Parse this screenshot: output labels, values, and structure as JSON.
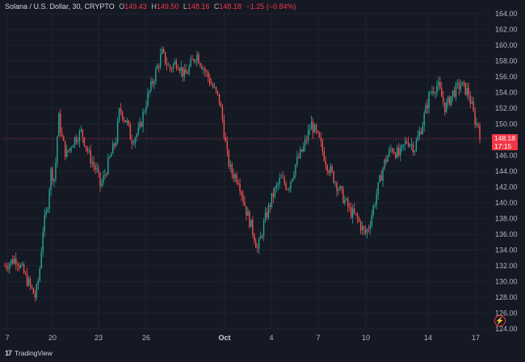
{
  "header": {
    "symbol": "Solana / U.S. Dollar, 30, CRYPTO",
    "open_label": "O",
    "open": "149.43",
    "high_label": "H",
    "high": "149.50",
    "low_label": "L",
    "low": "148.16",
    "close_label": "C",
    "close": "148.18",
    "change": "−1.25 (−0.84%)"
  },
  "price_tag": {
    "price": "148.18",
    "countdown": "17:15",
    "color": "#f23645"
  },
  "brand": {
    "name": "TradingView"
  },
  "colors": {
    "up": "#26a69a",
    "down": "#ef5350",
    "background": "#151924",
    "grid": "#1f2330"
  },
  "icons": {
    "alert": "lightning-icon",
    "logo": "tradingview-logo-icon"
  },
  "chart_data": {
    "type": "candlestick",
    "y_ticks": [
      "164.00",
      "162.00",
      "160.00",
      "158.00",
      "156.00",
      "154.00",
      "152.00",
      "150.00",
      "148.00",
      "146.00",
      "144.00",
      "142.00",
      "140.00",
      "138.00",
      "136.00",
      "134.00",
      "132.00",
      "130.00",
      "128.00",
      "126.00",
      "124.00"
    ],
    "x_ticks": [
      "7",
      "20",
      "23",
      "26",
      "Oct",
      "4",
      "7",
      "10",
      "14",
      "17"
    ],
    "ylim": [
      124,
      164
    ],
    "last_price": 148.18,
    "close_path": [
      [
        0,
        132
      ],
      [
        3,
        133
      ],
      [
        6,
        130
      ],
      [
        8,
        128
      ],
      [
        9,
        131
      ],
      [
        10,
        137
      ],
      [
        11,
        139
      ],
      [
        12,
        144
      ],
      [
        13,
        143
      ],
      [
        14,
        151
      ],
      [
        15,
        148
      ],
      [
        16,
        146
      ],
      [
        18,
        148
      ],
      [
        20,
        149
      ],
      [
        22,
        146
      ],
      [
        24,
        144
      ],
      [
        25,
        142
      ],
      [
        27,
        145
      ],
      [
        29,
        148
      ],
      [
        30,
        152
      ],
      [
        32,
        150
      ],
      [
        33,
        148
      ],
      [
        35,
        149
      ],
      [
        37,
        153
      ],
      [
        39,
        156
      ],
      [
        41,
        159
      ],
      [
        43,
        157
      ],
      [
        45,
        158
      ],
      [
        47,
        156
      ],
      [
        50,
        159
      ],
      [
        52,
        157
      ],
      [
        54,
        155
      ],
      [
        56,
        153
      ],
      [
        57,
        150
      ],
      [
        58,
        146
      ],
      [
        59,
        144
      ],
      [
        61,
        143
      ],
      [
        63,
        139
      ],
      [
        65,
        136
      ],
      [
        66,
        134
      ],
      [
        68,
        138
      ],
      [
        70,
        141
      ],
      [
        72,
        143
      ],
      [
        74,
        142
      ],
      [
        76,
        145
      ],
      [
        78,
        147
      ],
      [
        80,
        150
      ],
      [
        82,
        148
      ],
      [
        84,
        145
      ],
      [
        86,
        143
      ],
      [
        88,
        141
      ],
      [
        90,
        139
      ],
      [
        92,
        138
      ],
      [
        94,
        136
      ],
      [
        95,
        137
      ],
      [
        97,
        141
      ],
      [
        99,
        145
      ],
      [
        101,
        147
      ],
      [
        103,
        146
      ],
      [
        105,
        148
      ],
      [
        107,
        147
      ],
      [
        109,
        150
      ],
      [
        111,
        154
      ],
      [
        113,
        155
      ],
      [
        115,
        152
      ],
      [
        117,
        154
      ],
      [
        119,
        155
      ],
      [
        121,
        154
      ],
      [
        123,
        150
      ],
      [
        124,
        150
      ]
    ]
  }
}
